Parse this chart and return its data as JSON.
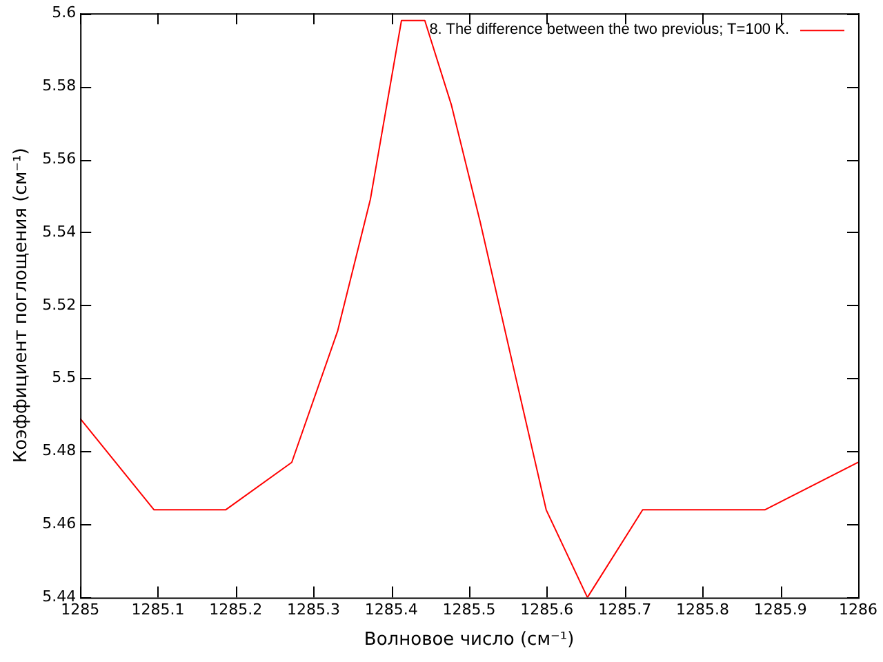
{
  "chart_data": {
    "type": "line",
    "xlabel": "Волновое число (см⁻¹)",
    "ylabel": "Коэффициент поглощения (см⁻¹)",
    "x": [
      1285,
      1285.095,
      1285.187,
      1285.272,
      1285.331,
      1285.373,
      1285.413,
      1285.443,
      1285.477,
      1285.514,
      1285.558,
      1285.599,
      1285.652,
      1285.723,
      1285.88,
      1286
    ],
    "series": [
      {
        "name": "8. The difference between the two previous; T=100 K.",
        "color": "#ff0000",
        "values": [
          5.489,
          5.464,
          5.464,
          5.477,
          5.513,
          5.549,
          5.598,
          5.598,
          5.575,
          5.543,
          5.502,
          5.464,
          5.44,
          5.464,
          5.464,
          5.477
        ]
      }
    ],
    "xlim": [
      1285,
      1286
    ],
    "xticks": [
      1285,
      1285.1,
      1285.2,
      1285.3,
      1285.4,
      1285.5,
      1285.6,
      1285.7,
      1285.8,
      1285.9,
      1286
    ],
    "ylim": [
      5.44,
      5.6
    ],
    "yticks": [
      5.44,
      5.46,
      5.48,
      5.5,
      5.52,
      5.54,
      5.56,
      5.58,
      5.6
    ],
    "grid": false,
    "legend": "top right",
    "marker": "none",
    "line_style": "solid"
  }
}
